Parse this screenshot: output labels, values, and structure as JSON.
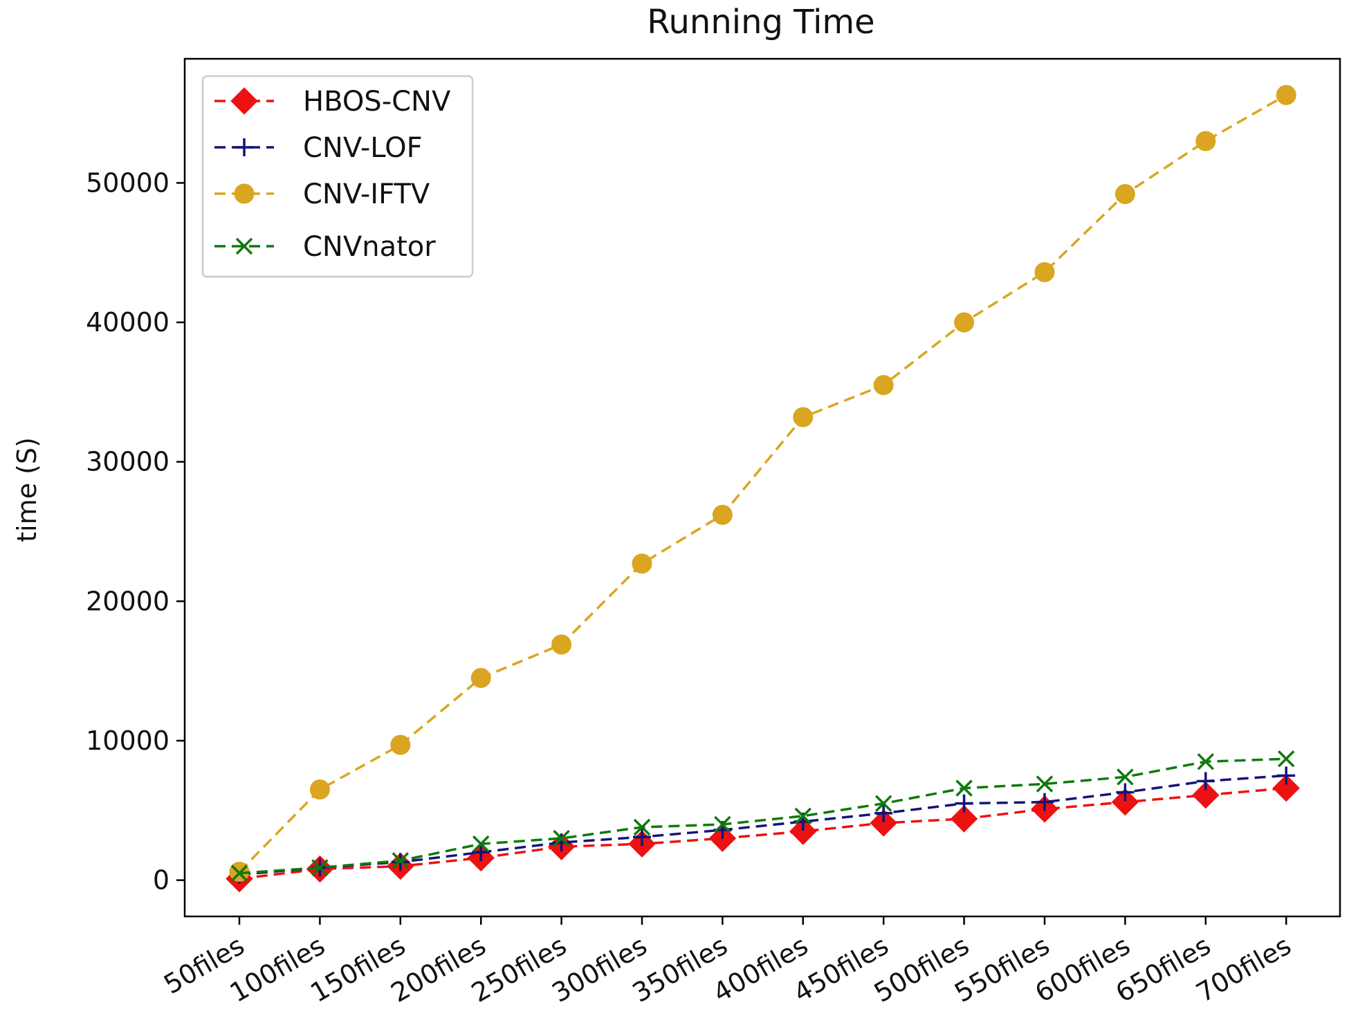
{
  "chart_data": {
    "type": "line",
    "title": "Running Time",
    "xlabel": "",
    "ylabel": "time (S)",
    "categories": [
      "50files",
      "100files",
      "150files",
      "200files",
      "250files",
      "300files",
      "350files",
      "400files",
      "450files",
      "500files",
      "550files",
      "600files",
      "650files",
      "700files"
    ],
    "ylim": [
      -2600,
      58900
    ],
    "yticks": [
      0,
      10000,
      20000,
      30000,
      40000,
      50000
    ],
    "ytick_labels": [
      "0",
      "10000",
      "20000",
      "30000",
      "40000",
      "50000"
    ],
    "grid": false,
    "legend_position": "top-left",
    "series": [
      {
        "name": "HBOS-CNV",
        "color": "#ee1111",
        "marker": "diamond",
        "linestyle": "dashed",
        "values": [
          100,
          800,
          1000,
          1600,
          2400,
          2600,
          3000,
          3500,
          4100,
          4400,
          5100,
          5600,
          6100,
          6600
        ]
      },
      {
        "name": "CNV-LOF",
        "color": "#14147a",
        "marker": "plus",
        "linestyle": "dashed",
        "values": [
          400,
          900,
          1300,
          2000,
          2700,
          3100,
          3600,
          4200,
          4800,
          5500,
          5600,
          6300,
          7100,
          7500
        ]
      },
      {
        "name": "CNV-IFTV",
        "color": "#daa520",
        "marker": "circle",
        "linestyle": "dashed",
        "values": [
          600,
          6500,
          9700,
          14500,
          16900,
          22700,
          26200,
          33200,
          35500,
          40000,
          43600,
          49200,
          53000,
          56300
        ]
      },
      {
        "name": "CNVnator",
        "color": "#0d7a0d",
        "marker": "x",
        "linestyle": "dashed",
        "values": [
          500,
          900,
          1400,
          2600,
          3000,
          3800,
          4000,
          4600,
          5500,
          6600,
          6900,
          7400,
          8500,
          8700
        ]
      }
    ]
  }
}
